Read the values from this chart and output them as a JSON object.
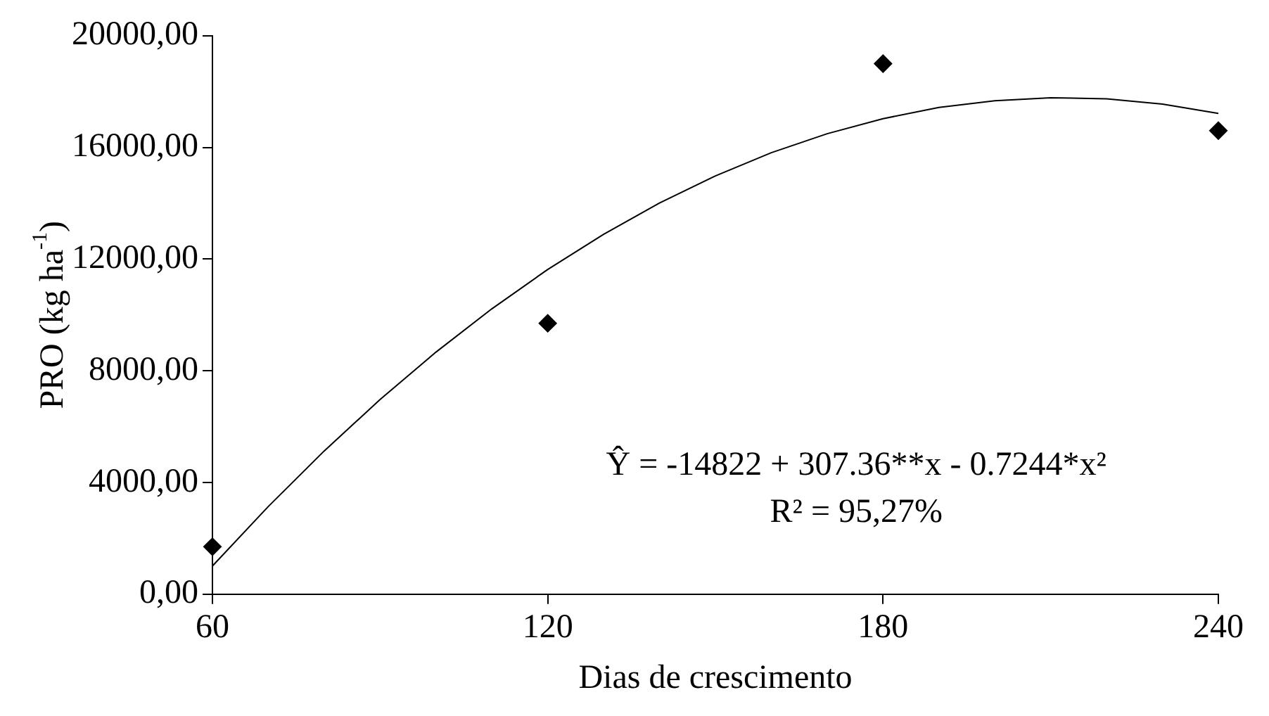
{
  "chart_data": {
    "type": "scatter",
    "xlabel": "Dias de crescimento",
    "ylabel": "PRO (kg ha$^{-1}$)",
    "xlim": [
      60,
      240
    ],
    "xticks": [
      60,
      120,
      180,
      240
    ],
    "ylim": [
      0,
      20000
    ],
    "yticks": [
      {
        "value": 0,
        "label": "0,00"
      },
      {
        "value": 4000,
        "label": "4000,00"
      },
      {
        "value": 8000,
        "label": "8000,00"
      },
      {
        "value": 12000,
        "label": "12000,00"
      },
      {
        "value": 16000,
        "label": "16000,00"
      },
      {
        "value": 20000,
        "label": "20000,00"
      }
    ],
    "grid": false,
    "legend": false,
    "marker": "diamond",
    "x": [
      60,
      120,
      180,
      240
    ],
    "series": [
      {
        "type": "scatter",
        "color": "#000000",
        "values": [
          1700,
          9700,
          19000,
          16600
        ]
      },
      {
        "type": "line",
        "color": "#000000",
        "marker": "none",
        "x": [
          60,
          70,
          80,
          90,
          100,
          110,
          120,
          130,
          140,
          150,
          160,
          170,
          180,
          190,
          200,
          210,
          220,
          230,
          240
        ],
        "values": [
          1010,
          3140,
          5130,
          6970,
          8670,
          10220,
          11630,
          12890,
          14010,
          14980,
          15810,
          16490,
          17030,
          17430,
          17670,
          17780,
          17740,
          17550,
          17220
        ]
      }
    ],
    "annotations": [
      "Ŷ = -14822 + 307.36**x - 0.7244*x²",
      "R² = 95,27%"
    ]
  }
}
